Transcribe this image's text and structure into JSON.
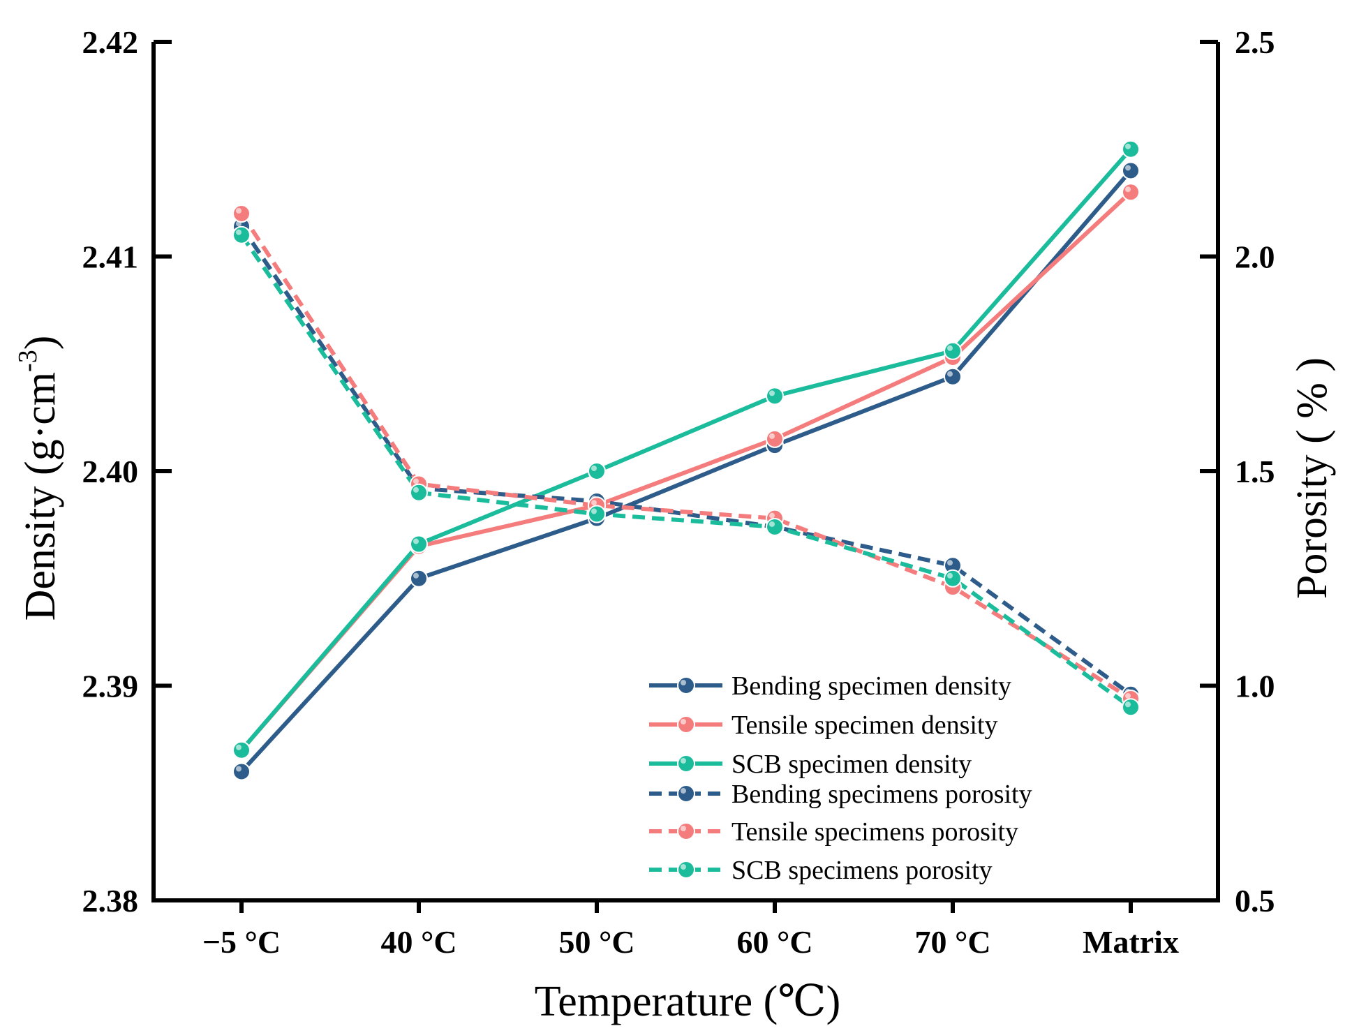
{
  "chart_data": {
    "type": "line",
    "categories": [
      "−5 °C",
      "40 °C",
      "50 °C",
      "60 °C",
      "70 °C",
      "Matrix"
    ],
    "xlabel": "Temperature (℃)",
    "ylabel_left": {
      "main": "Density (g·cm",
      "sup": "-3",
      "end": ")"
    },
    "ylabel_right": "Porosity ( % )",
    "ylim_left": [
      2.38,
      2.42
    ],
    "ylim_right": [
      0.5,
      2.5
    ],
    "yticks_left": [
      "2.38",
      "2.39",
      "2.40",
      "2.41",
      "2.42"
    ],
    "yticks_right": [
      "0.5",
      "1.0",
      "1.5",
      "2.0",
      "2.5"
    ],
    "grid": false,
    "legend_position": "bottom-right",
    "series": [
      {
        "name": "Bending specimen density",
        "axis": "left",
        "style": "solid",
        "color": "#2E5C8A",
        "values": [
          2.386,
          2.395,
          2.3978,
          2.4012,
          2.4044,
          2.414
        ]
      },
      {
        "name": "Tensile specimen density",
        "axis": "left",
        "style": "solid",
        "color": "#F47C7C",
        "values": [
          2.387,
          2.3965,
          2.3984,
          2.4015,
          2.4053,
          2.413
        ]
      },
      {
        "name": "SCB specimen density",
        "axis": "left",
        "style": "solid",
        "color": "#1ABC9C",
        "values": [
          2.387,
          2.3966,
          2.4,
          2.4035,
          2.4056,
          2.415
        ]
      },
      {
        "name": "Bending specimens porosity",
        "axis": "right",
        "style": "dashed",
        "color": "#2E5C8A",
        "values": [
          2.07,
          1.46,
          1.43,
          1.37,
          1.28,
          0.98
        ]
      },
      {
        "name": "Tensile specimens porosity",
        "axis": "right",
        "style": "dashed",
        "color": "#F47C7C",
        "values": [
          2.1,
          1.47,
          1.42,
          1.39,
          1.23,
          0.97
        ]
      },
      {
        "name": "SCB specimens porosity",
        "axis": "right",
        "style": "dashed",
        "color": "#1ABC9C",
        "values": [
          2.05,
          1.45,
          1.4,
          1.37,
          1.25,
          0.95
        ]
      }
    ]
  }
}
